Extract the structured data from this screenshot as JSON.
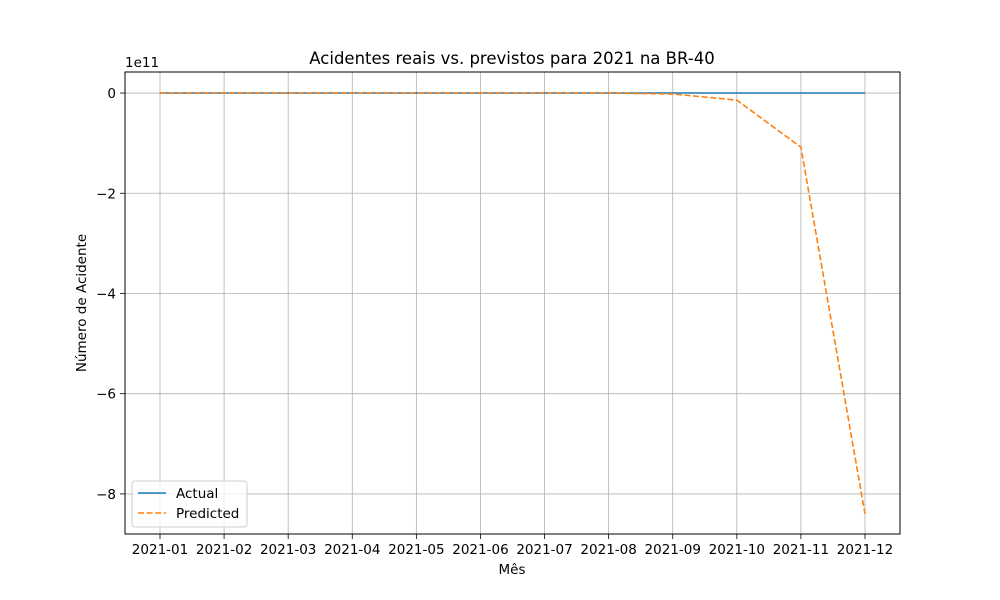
{
  "chart_data": {
    "type": "line",
    "title": "Acidentes reais vs. previstos para 2021 na BR-40",
    "xlabel": "Mês",
    "ylabel": "Número de Acidente",
    "y_offset_label": "1e11",
    "y_multiplier": 100000000000,
    "categories": [
      "2021-01",
      "2021-02",
      "2021-03",
      "2021-04",
      "2021-05",
      "2021-06",
      "2021-07",
      "2021-08",
      "2021-09",
      "2021-10",
      "2021-11",
      "2021-12"
    ],
    "yticks": [
      0,
      -2,
      -4,
      -6,
      -8
    ],
    "yticklabels": [
      "0",
      "−2",
      "−4",
      "−6",
      "−8"
    ],
    "ylim": [
      -8.8,
      0.42
    ],
    "grid": true,
    "legend_position": "lower-left",
    "series": [
      {
        "name": "Actual",
        "style": "solid",
        "color": "#1f77b4",
        "values": [
          0,
          0,
          0,
          0,
          0,
          0,
          0,
          0,
          0,
          0,
          0,
          0
        ]
      },
      {
        "name": "Predicted",
        "style": "dashed",
        "color": "#ff7f0e",
        "values": [
          0,
          0,
          0,
          0,
          0,
          0,
          0,
          0,
          -0.02,
          -0.14,
          -1.08,
          -8.4
        ]
      }
    ]
  }
}
